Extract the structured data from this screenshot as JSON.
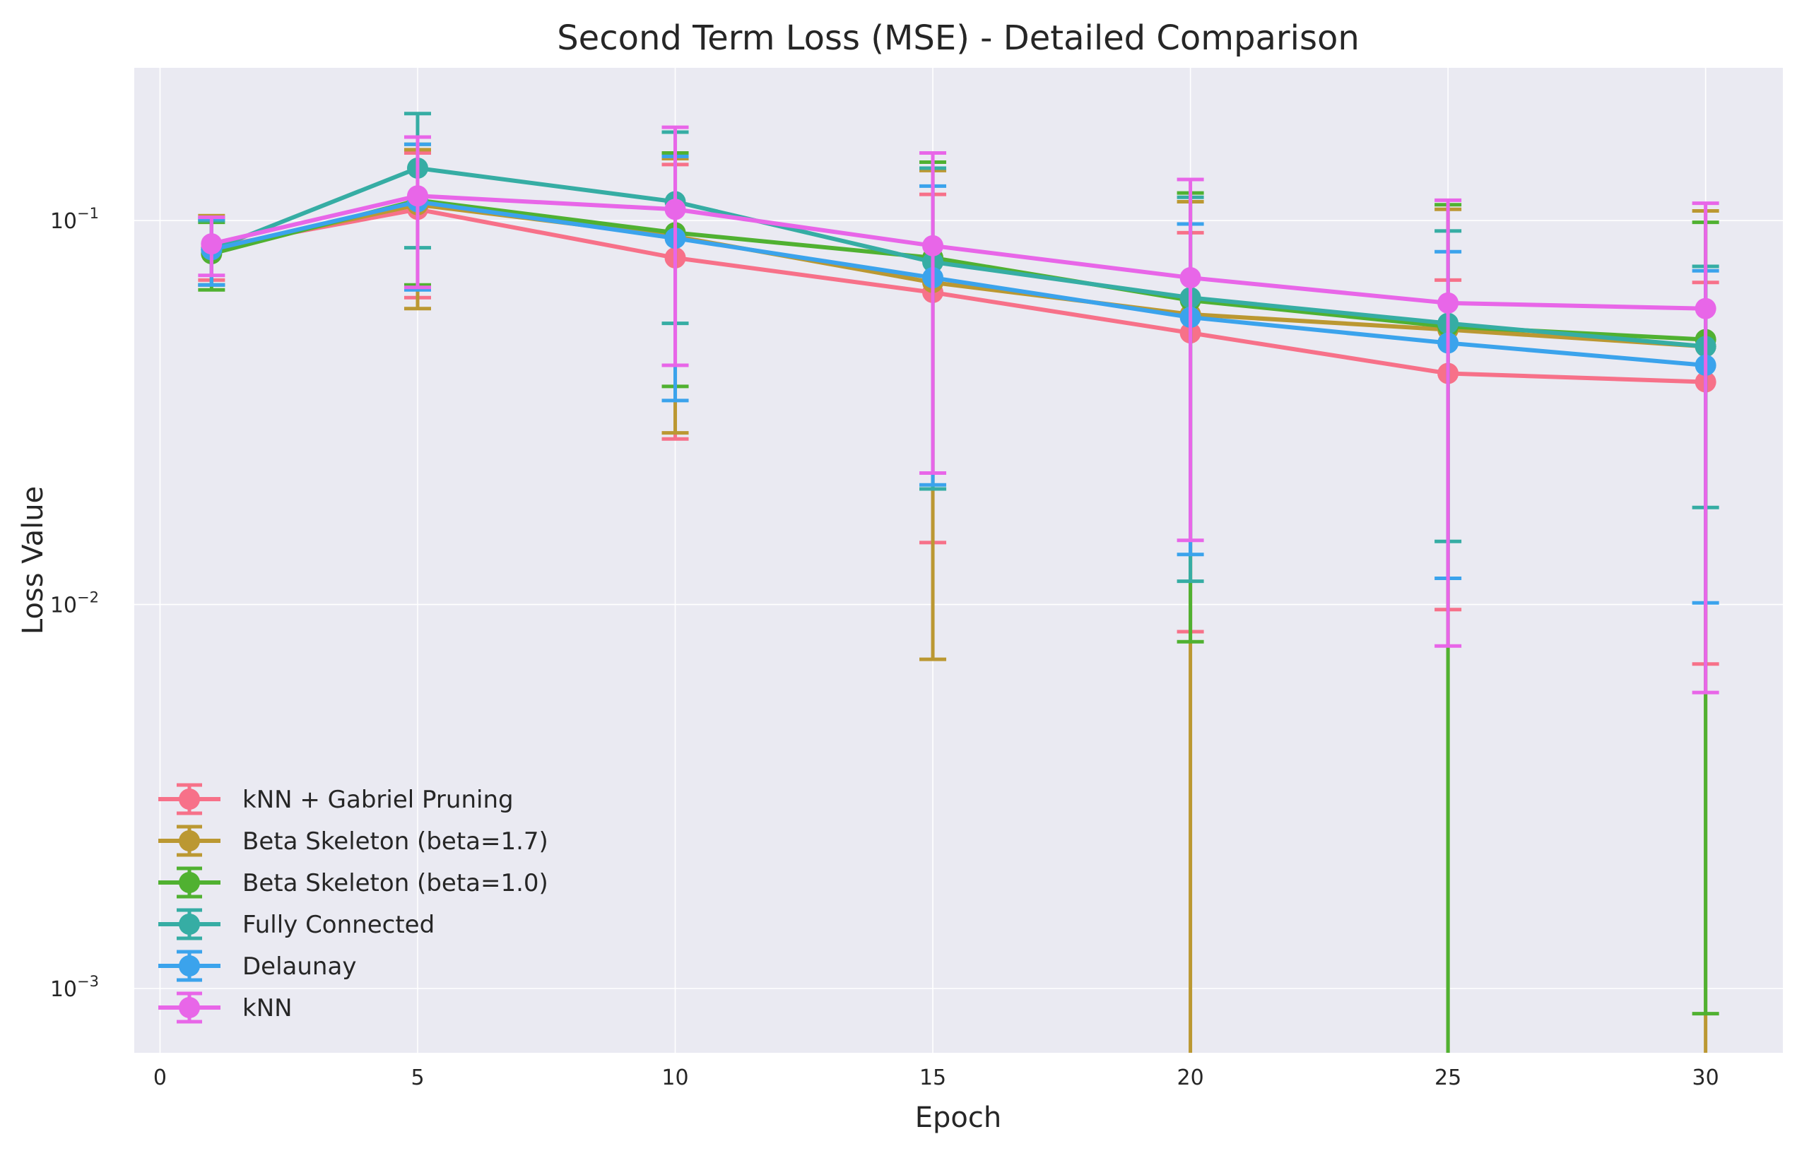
{
  "chart_data": {
    "type": "line",
    "title": "Second Term Loss (MSE) - Detailed Comparison",
    "xlabel": "Epoch",
    "ylabel": "Loss Value",
    "yscale": "log",
    "xlim": [
      -0.5,
      31.5
    ],
    "ylim": [
      0.00068,
      0.25
    ],
    "x_ticks": [
      0,
      5,
      10,
      15,
      20,
      25,
      30
    ],
    "y_ticks": [
      {
        "value": 0.001,
        "base": "10",
        "exp": "−3"
      },
      {
        "value": 0.01,
        "base": "10",
        "exp": "−2"
      },
      {
        "value": 0.1,
        "base": "10",
        "exp": "−1"
      }
    ],
    "grid": true,
    "legend_position": "lower-left",
    "x": [
      1,
      5,
      10,
      15,
      20,
      25,
      30
    ],
    "series": [
      {
        "name": "kNN + Gabriel Pruning",
        "color": "#f77189",
        "values": [
          0.085,
          0.107,
          0.08,
          0.065,
          0.051,
          0.04,
          0.038
        ],
        "err_low": [
          0.07,
          0.063,
          0.027,
          0.0145,
          0.0085,
          0.0097,
          0.007
        ],
        "err_high": [
          0.101,
          0.15,
          0.14,
          0.117,
          0.093,
          0.07,
          0.069
        ]
      },
      {
        "name": "Beta Skeleton (beta=1.7)",
        "color": "#bb9832",
        "values": [
          0.084,
          0.11,
          0.091,
          0.069,
          0.057,
          0.052,
          0.047
        ],
        "err_low": [
          0.068,
          0.059,
          0.028,
          0.0072,
          0.0001,
          0.0001,
          0.0001
        ],
        "err_high": [
          0.103,
          0.153,
          0.145,
          0.135,
          0.112,
          0.107,
          0.106
        ]
      },
      {
        "name": "Beta Skeleton (beta=1.0)",
        "color": "#50b131",
        "values": [
          0.082,
          0.113,
          0.093,
          0.08,
          0.062,
          0.053,
          0.049
        ],
        "err_low": [
          0.066,
          0.068,
          0.037,
          0.02,
          0.008,
          0.0001,
          0.00086
        ],
        "err_high": [
          0.099,
          0.158,
          0.15,
          0.142,
          0.118,
          0.11,
          0.099
        ]
      },
      {
        "name": "Fully Connected",
        "color": "#36ada4",
        "values": [
          0.084,
          0.137,
          0.112,
          0.078,
          0.063,
          0.054,
          0.047
        ],
        "err_low": [
          0.068,
          0.085,
          0.054,
          0.02,
          0.0115,
          0.0146,
          0.0179
        ],
        "err_high": [
          0.1,
          0.19,
          0.17,
          0.137,
          0.115,
          0.094,
          0.076
        ]
      },
      {
        "name": "Delaunay",
        "color": "#3ba3ec",
        "values": [
          0.084,
          0.112,
          0.09,
          0.071,
          0.056,
          0.048,
          0.042
        ],
        "err_low": [
          0.068,
          0.066,
          0.034,
          0.0205,
          0.0135,
          0.0117,
          0.0101
        ],
        "err_high": [
          0.101,
          0.158,
          0.147,
          0.123,
          0.098,
          0.083,
          0.074
        ]
      },
      {
        "name": "kNN",
        "color": "#e866e8",
        "values": [
          0.087,
          0.116,
          0.107,
          0.086,
          0.071,
          0.061,
          0.059
        ],
        "err_low": [
          0.072,
          0.067,
          0.042,
          0.022,
          0.0147,
          0.0078,
          0.0059
        ],
        "err_high": [
          0.102,
          0.165,
          0.175,
          0.15,
          0.128,
          0.113,
          0.111
        ]
      }
    ]
  }
}
